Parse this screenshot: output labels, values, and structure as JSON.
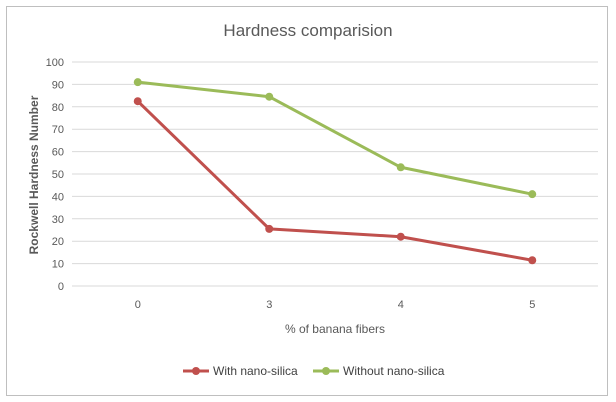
{
  "chart_data": {
    "type": "line",
    "title": "Hardness comparision",
    "xlabel": "% of banana fibers",
    "ylabel": "Rockwell Hardness Number",
    "categories": [
      "0",
      "3",
      "4",
      "5"
    ],
    "yticks": [
      "0",
      "10",
      "20",
      "30",
      "40",
      "50",
      "60",
      "70",
      "80",
      "90",
      "100"
    ],
    "ylim": [
      0,
      100
    ],
    "grid": true,
    "legend_position": "bottom",
    "series": [
      {
        "name": "With nano-silica",
        "color": "#c0504d",
        "values": [
          82.5,
          25.5,
          22,
          11.5
        ]
      },
      {
        "name": "Without nano-silica",
        "color": "#9bbb59",
        "values": [
          91,
          84.5,
          53,
          41
        ]
      }
    ]
  }
}
